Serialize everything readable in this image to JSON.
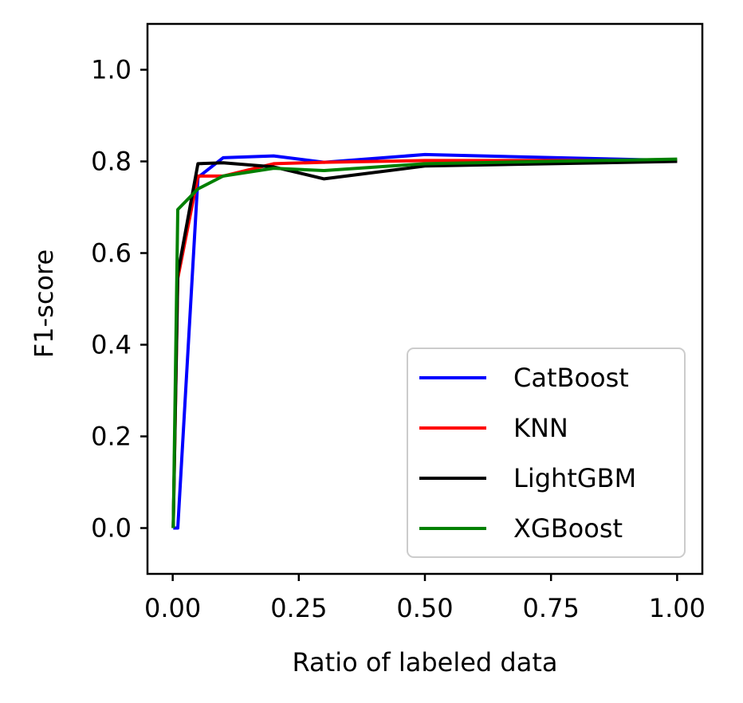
{
  "chart_data": {
    "type": "line",
    "title": "",
    "xlabel": "Ratio of labeled data",
    "ylabel": "F1-score",
    "xlim": [
      -0.05,
      1.05
    ],
    "ylim": [
      -0.1,
      1.1
    ],
    "xticks": [
      0.0,
      0.25,
      0.5,
      0.75,
      1.0
    ],
    "xtick_labels": [
      "0.00",
      "0.25",
      "0.50",
      "0.75",
      "1.00"
    ],
    "yticks": [
      0.0,
      0.2,
      0.4,
      0.6,
      0.8,
      1.0
    ],
    "ytick_labels": [
      "0.0",
      "0.2",
      "0.4",
      "0.6",
      "0.8",
      "1.0"
    ],
    "grid": false,
    "legend_position": "lower-right",
    "series": [
      {
        "name": "CatBoost",
        "color": "#0000ff",
        "x": [
          0.001,
          0.01,
          0.05,
          0.1,
          0.2,
          0.3,
          0.5,
          1.0
        ],
        "y": [
          0.0,
          0.0,
          0.765,
          0.808,
          0.812,
          0.798,
          0.815,
          0.802
        ]
      },
      {
        "name": "KNN",
        "color": "#ff0000",
        "x": [
          0.001,
          0.01,
          0.05,
          0.1,
          0.2,
          0.3,
          0.5,
          1.0
        ],
        "y": [
          0.0,
          0.545,
          0.768,
          0.768,
          0.795,
          0.798,
          0.802,
          0.802
        ]
      },
      {
        "name": "LightGBM",
        "color": "#000000",
        "x": [
          0.001,
          0.01,
          0.05,
          0.1,
          0.2,
          0.3,
          0.5,
          1.0
        ],
        "y": [
          0.0,
          0.555,
          0.795,
          0.797,
          0.788,
          0.762,
          0.79,
          0.8
        ]
      },
      {
        "name": "XGBoost",
        "color": "#008000",
        "x": [
          0.001,
          0.01,
          0.05,
          0.1,
          0.2,
          0.3,
          0.5,
          1.0
        ],
        "y": [
          0.0,
          0.695,
          0.74,
          0.768,
          0.785,
          0.78,
          0.795,
          0.805
        ]
      }
    ]
  }
}
